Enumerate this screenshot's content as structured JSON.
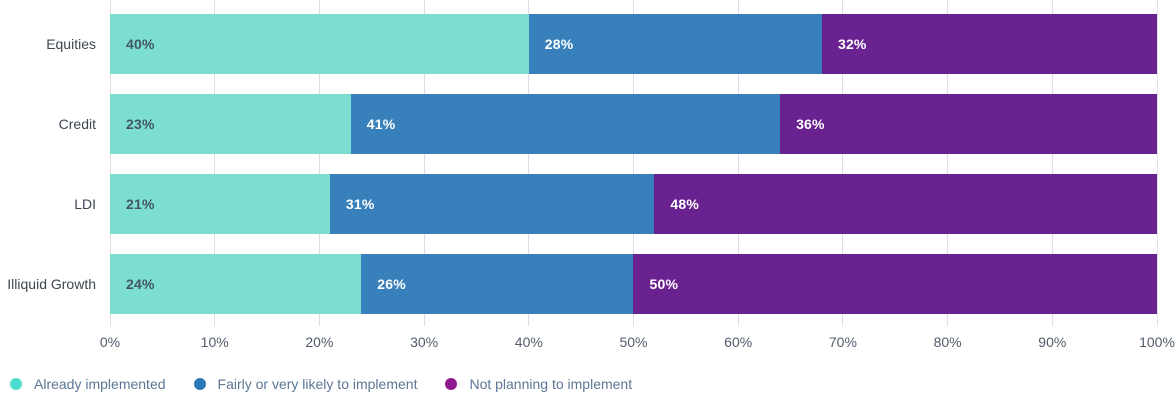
{
  "chart_data": {
    "type": "bar",
    "orientation": "horizontal",
    "stacked": true,
    "title": "",
    "categories": [
      "Equities",
      "Credit",
      "LDI",
      "Illiquid Growth"
    ],
    "series": [
      {
        "name": "Already implemented",
        "color": "#7CDED1",
        "legend_marker_color": "#4EDCCB",
        "value_label_color": "#44565F",
        "values": [
          40,
          23,
          21,
          24
        ]
      },
      {
        "name": "Fairly or very likely to implement",
        "color": "#3880BB",
        "legend_marker_color": "#3077B7",
        "value_label_color": "#FFFFFF",
        "values": [
          28,
          41,
          31,
          26
        ]
      },
      {
        "name": "Not planning to implement",
        "color": "#6A2290",
        "legend_marker_color": "#8E1A8D",
        "value_label_color": "#FFFFFF",
        "values": [
          32,
          36,
          48,
          50
        ]
      }
    ],
    "value_suffix": "%",
    "x_axis": {
      "min": 0,
      "max": 100,
      "tick_step": 10,
      "tick_labels": [
        "0%",
        "10%",
        "20%",
        "30%",
        "40%",
        "50%",
        "60%",
        "70%",
        "80%",
        "90%",
        "100%"
      ]
    },
    "grid": true,
    "legend_position": "bottom-left"
  },
  "colors": {
    "background": "#FFFFFF",
    "gridline": "#DCDFE3",
    "axis_tick_text": "#515C6B",
    "category_text": "#3D4653",
    "legend_text": "#5C7695"
  }
}
